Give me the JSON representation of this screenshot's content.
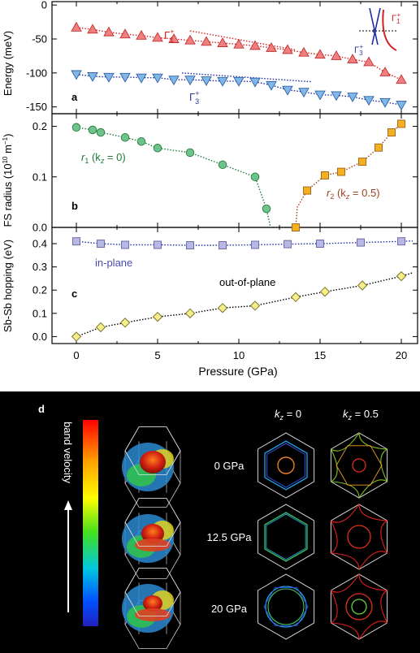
{
  "chart_data": [
    {
      "panel": "a",
      "type": "scatter",
      "ylabel": "Energy (meV)",
      "xlim": [
        -1.5,
        21
      ],
      "ylim": [
        -160,
        5
      ],
      "yticks": [
        0,
        -50,
        -100,
        -150
      ],
      "series": [
        {
          "name": "Γ1+",
          "marker": "triangle-up",
          "color": "#f08080",
          "x": [
            0,
            1,
            2,
            3,
            4,
            5,
            6,
            7,
            8,
            9,
            10,
            11,
            12,
            13,
            14,
            15,
            16,
            17,
            18,
            19,
            20
          ],
          "y": [
            -33,
            -36,
            -40,
            -43,
            -45,
            -48,
            -50,
            -52,
            -54,
            -56,
            -58,
            -60,
            -63,
            -66,
            -70,
            -73,
            -75,
            -80,
            -84,
            -99,
            -110
          ]
        },
        {
          "name": "Γ3+",
          "marker": "triangle-down",
          "color": "#7eb7e8",
          "x": [
            0,
            1,
            2,
            3,
            4,
            5,
            6,
            7,
            8,
            9,
            10,
            11,
            12,
            13,
            14,
            15,
            16,
            17,
            18,
            19,
            20
          ],
          "y": [
            -102,
            -105,
            -106,
            -106,
            -107,
            -107,
            -110,
            -110,
            -111,
            -112,
            -112,
            -113,
            -118,
            -125,
            -128,
            -132,
            -133,
            -135,
            -140,
            -143,
            -147
          ]
        }
      ]
    },
    {
      "panel": "b",
      "type": "scatter",
      "ylabel": "FS radius (10¹⁰ m⁻¹)",
      "xlim": [
        -1.5,
        21
      ],
      "ylim": [
        0,
        0.225
      ],
      "yticks": [
        0.0,
        0.1,
        0.2
      ],
      "series": [
        {
          "name": "r1 (kz = 0)",
          "marker": "circle",
          "color": "#6cc48a",
          "x": [
            0,
            1,
            1.5,
            3,
            4,
            5,
            7,
            9,
            11,
            11.7
          ],
          "y": [
            0.198,
            0.193,
            0.188,
            0.178,
            0.17,
            0.157,
            0.148,
            0.124,
            0.1,
            0.037
          ]
        },
        {
          "name": "r2 (kz = 0.5)",
          "marker": "square",
          "color": "#f4b020",
          "x": [
            13.5,
            14.2,
            15.3,
            16.3,
            17.6,
            18.6,
            19.4,
            20
          ],
          "y": [
            0.0,
            0.073,
            0.103,
            0.11,
            0.13,
            0.158,
            0.188,
            0.205
          ]
        }
      ]
    },
    {
      "panel": "c",
      "type": "scatter",
      "ylabel": "Sb-Sb hopping (eV)",
      "xlabel": "Pressure (GPa)",
      "xlim": [
        -1.5,
        21
      ],
      "ylim": [
        -0.03,
        0.47
      ],
      "xticks": [
        0,
        5,
        10,
        15,
        20
      ],
      "yticks": [
        0.0,
        0.1,
        0.2,
        0.3,
        0.4
      ],
      "series": [
        {
          "name": "in-plane",
          "marker": "square",
          "color": "#b8b8e6",
          "x": [
            0,
            1.5,
            3,
            5,
            7,
            9,
            11,
            13,
            15,
            17.5,
            20
          ],
          "y": [
            0.41,
            0.4,
            0.395,
            0.395,
            0.393,
            0.393,
            0.395,
            0.398,
            0.4,
            0.405,
            0.41
          ]
        },
        {
          "name": "out-of-plane",
          "marker": "diamond",
          "color": "#f5ee8a",
          "x": [
            0,
            1.5,
            3,
            5,
            7,
            9,
            11,
            13.5,
            15.3,
            17.6,
            20
          ],
          "y": [
            0.0,
            0.04,
            0.06,
            0.085,
            0.1,
            0.123,
            0.133,
            0.17,
            0.193,
            0.22,
            0.26
          ]
        }
      ]
    }
  ],
  "labels": {
    "xlabel": "Pressure (GPa)",
    "panel_a": "a",
    "panel_b": "b",
    "panel_c": "c",
    "panel_d": "d",
    "gamma1": "Γ",
    "gamma1_sub": "1",
    "gamma3": "Γ",
    "gamma3_sub": "3",
    "plus": "+",
    "r1_main": "r",
    "r1_sub": "1",
    "r1_rest": " (k",
    "r1_z": "z",
    "r1_end": " = 0)",
    "r2_main": "r",
    "r2_sub": "2",
    "r2_rest": " (k",
    "r2_z": "z",
    "r2_end": " = 0.5)",
    "inplane": "in-plane",
    "outofplane": "out-of-plane",
    "ylabel_a": "Energy (meV)",
    "ylabel_b_main": "FS radius (10",
    "ylabel_b_exp1": "10",
    "ylabel_b_mid": " m",
    "ylabel_b_exp2": "−1",
    "ylabel_b_end": ")",
    "ylabel_c": "Sb-Sb hopping (eV)"
  },
  "panel_d": {
    "colorbar_label": "band velocity",
    "col1_k": "k",
    "col1_z": "z",
    "col1_rest": " = 0",
    "col2_k": "k",
    "col2_z": "z",
    "col2_rest": " = 0.5",
    "pressures": [
      "0 GPa",
      "12.5 GPa",
      "20 GPa"
    ]
  },
  "colors": {
    "red": "#d42020",
    "blue": "#1a2aa8",
    "green": "#1e7a3a",
    "brown": "#a04020",
    "navy": "#2a3a9a",
    "inplane_label": "#4a4ab0"
  }
}
